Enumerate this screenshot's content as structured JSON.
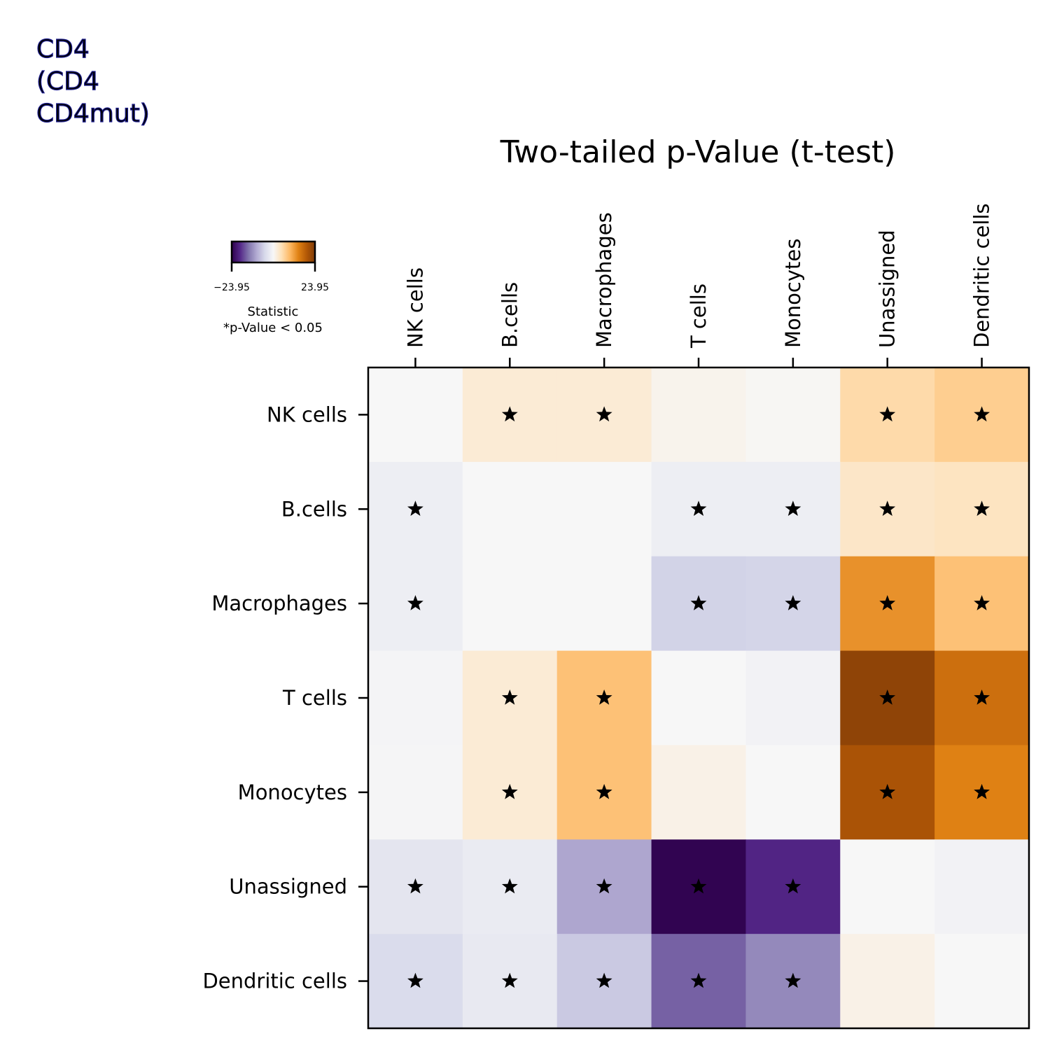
{
  "figure": {
    "corner_title": "CD4\n(CD4\nCD4mut)"
  },
  "colorbar": {
    "min_label": "−23.95",
    "max_label": "23.95",
    "label_line1": "Statistic",
    "label_line2": "*p-Value < 0.05",
    "colormap": "PuOr_r",
    "colors": [
      "#2d004b",
      "#542788",
      "#8073ac",
      "#b2abd2",
      "#d8daeb",
      "#f7f7f7",
      "#fee0b6",
      "#fdb863",
      "#e08214",
      "#b35806",
      "#7f3b08"
    ]
  },
  "chart_data": {
    "type": "heatmap",
    "title": "Two-tailed p-Value (t-test)",
    "xlabel": "",
    "ylabel": "",
    "x_categories": [
      "NK cells",
      "B.cells",
      "Macrophages",
      "T cells",
      "Monocytes",
      "Unassigned",
      "Dendritic cells"
    ],
    "y_categories": [
      "NK cells",
      "B.cells",
      "Macrophages",
      "T cells",
      "Monocytes",
      "Unassigned",
      "Dendritic cells"
    ],
    "value_range": [
      -23.95,
      23.95
    ],
    "colorbar_label": "Statistic",
    "annotation": "*p-Value < 0.05",
    "values": [
      [
        0.0,
        2.5,
        2.5,
        0.8,
        0.3,
        5.5,
        7.0
      ],
      [
        -1.5,
        0.0,
        0.0,
        -1.5,
        -1.5,
        3.5,
        4.0
      ],
      [
        -1.5,
        0.0,
        0.0,
        -5.5,
        -5.3,
        13.0,
        8.5
      ],
      [
        -0.5,
        2.5,
        8.5,
        0.0,
        -0.8,
        22.5,
        16.5
      ],
      [
        -0.3,
        2.5,
        8.5,
        1.2,
        0.0,
        20.0,
        14.5
      ],
      [
        -3.0,
        -2.0,
        -10.0,
        -23.5,
        -19.5,
        0.0,
        -0.8
      ],
      [
        -4.5,
        -2.3,
        -6.5,
        -15.5,
        -12.5,
        1.2,
        0.0
      ]
    ],
    "significant": [
      [
        false,
        true,
        true,
        false,
        false,
        true,
        true
      ],
      [
        true,
        false,
        false,
        true,
        true,
        true,
        true
      ],
      [
        true,
        false,
        false,
        true,
        true,
        true,
        true
      ],
      [
        false,
        true,
        true,
        false,
        false,
        true,
        true
      ],
      [
        false,
        true,
        true,
        false,
        false,
        true,
        true
      ],
      [
        true,
        true,
        true,
        true,
        true,
        false,
        false
      ],
      [
        true,
        true,
        true,
        true,
        true,
        false,
        false
      ]
    ]
  }
}
